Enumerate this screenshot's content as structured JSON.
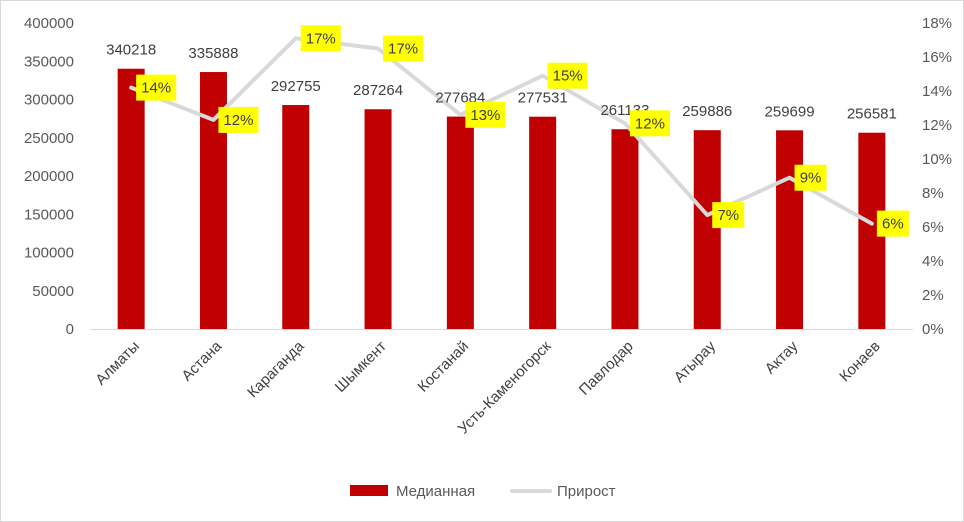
{
  "chart_data": {
    "type": "bar",
    "categories": [
      "Алматы",
      "Астана",
      "Караганда",
      "Шымкент",
      "Костанай",
      "Усть-Каменогорск",
      "Павлодар",
      "Атырау",
      "Актау",
      "Конаев"
    ],
    "series": [
      {
        "name": "Медианная",
        "type": "bar",
        "axis": "left",
        "color": "#c00000",
        "values": [
          340218,
          335888,
          292755,
          287264,
          277684,
          277531,
          261133,
          259886,
          259699,
          256581
        ]
      },
      {
        "name": "Прирост",
        "type": "line",
        "axis": "right",
        "color": "#d9d9d9",
        "values": [
          0.142,
          0.123,
          0.171,
          0.165,
          0.126,
          0.149,
          0.121,
          0.067,
          0.089,
          0.062
        ],
        "labels": [
          "14%",
          "12%",
          "17%",
          "17%",
          "13%",
          "15%",
          "12%",
          "7%",
          "9%",
          "6%"
        ],
        "label_bg": "#ffff00"
      }
    ],
    "y_left": {
      "min": 0,
      "max": 400000,
      "ticks": [
        "0",
        "50000",
        "100000",
        "150000",
        "200000",
        "250000",
        "300000",
        "350000",
        "400000"
      ]
    },
    "y_right": {
      "min": 0,
      "max": 0.18,
      "ticks": [
        "0%",
        "2%",
        "4%",
        "6%",
        "8%",
        "10%",
        "12%",
        "14%",
        "16%",
        "18%"
      ]
    },
    "grid": false,
    "legend": "bottom"
  }
}
